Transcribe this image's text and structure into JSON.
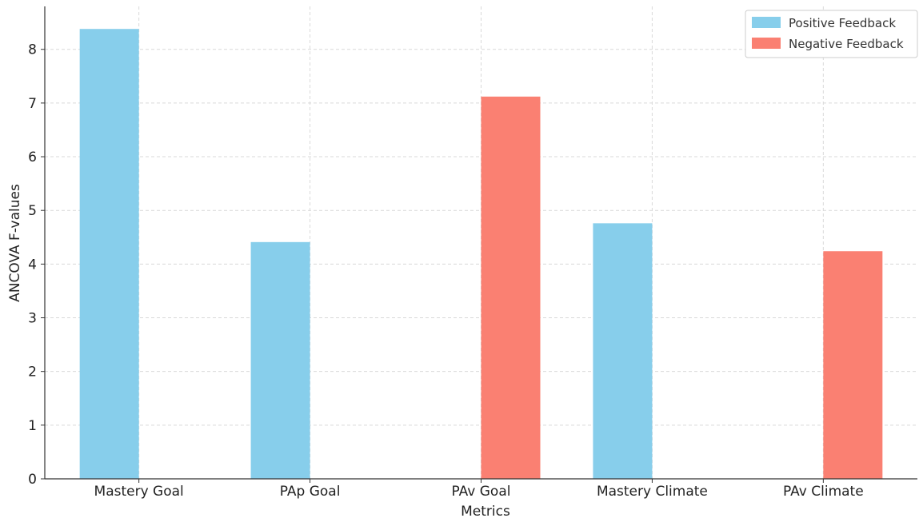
{
  "chart_data": {
    "type": "bar",
    "categories": [
      "Mastery Goal",
      "PAp Goal",
      "PAv Goal",
      "Mastery Climate",
      "PAv Climate"
    ],
    "series": [
      {
        "name": "Positive Feedback",
        "color": "#87ceeb",
        "values": [
          8.38,
          4.41,
          null,
          4.76,
          null
        ]
      },
      {
        "name": "Negative Feedback",
        "color": "#fa8072",
        "values": [
          null,
          null,
          7.12,
          null,
          4.24
        ]
      }
    ],
    "xlabel": "Metrics",
    "ylabel": "ANCOVA F-values",
    "ylim": [
      0,
      8.8
    ],
    "yticks": [
      "0",
      "1",
      "2",
      "3",
      "4",
      "5",
      "6",
      "7",
      "8"
    ],
    "grid": true,
    "legend_position": "top-right"
  }
}
